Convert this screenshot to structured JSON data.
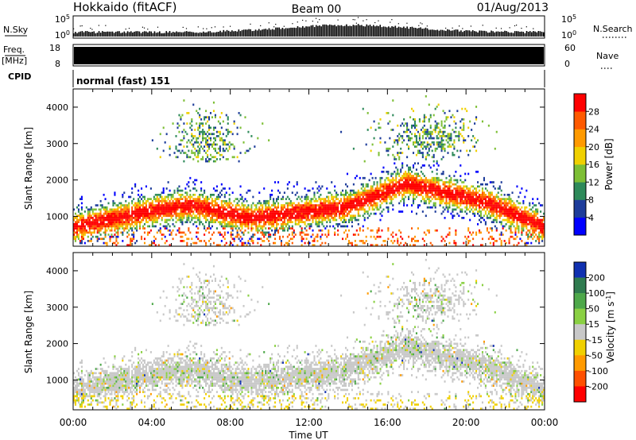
{
  "header": {
    "station": "Hokkaido (fitACF)",
    "beam": "Beam 00",
    "date": "01/Aug/2013"
  },
  "side_labels": {
    "nsky": "N.Sky",
    "nsearch": "N.Search",
    "freq": "Freq.",
    "mhz": "[MHz]",
    "nave": "Nave",
    "cpid": "CPID"
  },
  "cpid_text": "normal (fast) 151",
  "noise_panel": {
    "left_ticks": [
      "10^5",
      "10^0"
    ],
    "right_ticks": [
      "10^5",
      "10^0"
    ]
  },
  "freq_panel": {
    "left_ticks": [
      "18",
      "8"
    ],
    "right_ticks": [
      "60",
      "0"
    ]
  },
  "x_axis": {
    "label": "Time UT",
    "ticks": [
      "00:00",
      "04:00",
      "08:00",
      "12:00",
      "16:00",
      "20:00",
      "00:00"
    ]
  },
  "chart_data": [
    {
      "type": "heatmap",
      "title": "",
      "xlabel": "",
      "ylabel": "Slant Range [km]",
      "xlim": [
        0,
        24
      ],
      "ylim": [
        180,
        4500
      ],
      "yticks": [
        1000,
        2000,
        3000,
        4000
      ],
      "colorbar": {
        "label": "Power [dB]",
        "ticks": [
          "4",
          "8",
          "12",
          "16",
          "20",
          "24",
          "28"
        ],
        "range": [
          0,
          32
        ],
        "colors": [
          "#0000ff",
          "#1d3c9a",
          "#2e8a5a",
          "#7dbf35",
          "#f0d000",
          "#ff9a00",
          "#ff5a00",
          "#ff0000"
        ]
      }
    },
    {
      "type": "heatmap",
      "title": "",
      "xlabel": "Time UT",
      "ylabel": "Slant Range [km]",
      "xlim": [
        0,
        24
      ],
      "ylim": [
        180,
        4500
      ],
      "yticks": [
        1000,
        2000,
        3000,
        4000
      ],
      "colorbar": {
        "label": "Velocity [m s^-1]",
        "ticks": [
          "200",
          "100",
          "50",
          "15",
          "-15",
          "-50",
          "-100",
          "-200"
        ],
        "colors": [
          "#1030b0",
          "#2f7b4f",
          "#4ea84a",
          "#8ad043",
          "#c8c8c8",
          "#f0d000",
          "#ff9a00",
          "#ff5000",
          "#ff0000"
        ]
      }
    }
  ]
}
